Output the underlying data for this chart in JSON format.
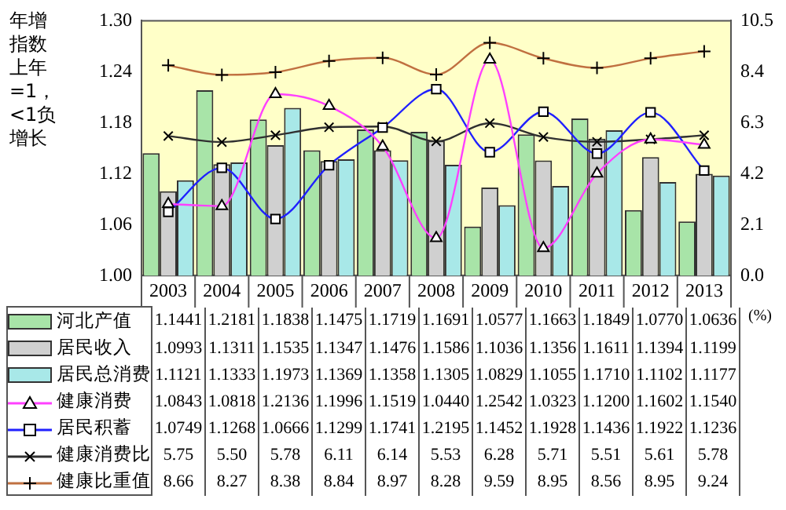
{
  "chart_data": {
    "type": "bar",
    "ylabel": "年增指数上年=1，<1负增长",
    "y2label": "(%)",
    "categories": [
      "2003",
      "2004",
      "2005",
      "2006",
      "2007",
      "2008",
      "2009",
      "2010",
      "2011",
      "2012",
      "2013"
    ],
    "ylim": [
      1.0,
      1.3
    ],
    "yticks": [
      {
        "value": 1.0,
        "label": "1.00"
      },
      {
        "value": 1.06,
        "label": "1.06"
      },
      {
        "value": 1.12,
        "label": "1.12"
      },
      {
        "value": 1.18,
        "label": "1.18"
      },
      {
        "value": 1.24,
        "label": "1.24"
      },
      {
        "value": 1.3,
        "label": "1.30"
      }
    ],
    "y2lim": [
      0,
      10.5
    ],
    "y2ticks": [
      {
        "value": 0,
        "label": "0.0"
      },
      2.1,
      4.2,
      6.3,
      8.4,
      10.5
    ],
    "grid": false,
    "legend": "bottom",
    "series": [
      {
        "name": "河北产值",
        "color": "#a8e4a8",
        "values": [
          1.1441,
          1.2181,
          1.1838,
          1.1475,
          1.1719,
          1.1691,
          1.0577,
          1.1663,
          1.1849,
          1.077,
          1.0636
        ],
        "value_labels": [
          "1.1441",
          "1.2181",
          "1.1838",
          "1.1475",
          "1.1719",
          "1.1691",
          "1.0577",
          "1.1663",
          "1.1849",
          "1.0770",
          "1.0636"
        ]
      },
      {
        "name": "居民收入",
        "color": "#d0d0d0",
        "values": [
          1.0993,
          1.1311,
          1.1535,
          1.1347,
          1.1476,
          1.1586,
          1.1036,
          1.1356,
          1.1611,
          1.1394,
          1.1199
        ],
        "value_labels": [
          "1.0993",
          "1.1311",
          "1.1535",
          "1.1347",
          "1.1476",
          "1.1586",
          "1.1036",
          "1.1356",
          "1.1611",
          "1.1394",
          "1.1199"
        ]
      },
      {
        "name": "居民总消费",
        "color": "#a8e8e8",
        "values": [
          1.1121,
          1.1333,
          1.1973,
          1.1369,
          1.1358,
          1.1305,
          1.0829,
          1.1055,
          1.171,
          1.1102,
          1.1177
        ],
        "value_labels": [
          "1.1121",
          "1.1333",
          "1.1973",
          "1.1369",
          "1.1358",
          "1.1305",
          "1.0829",
          "1.1055",
          "1.1710",
          "1.1102",
          "1.1177"
        ]
      },
      {
        "name": "健康消费",
        "type": "line",
        "color": "#ff40ff",
        "marker": "triangle",
        "values": [
          1.0843,
          1.0818,
          1.2136,
          1.1996,
          1.1519,
          1.044,
          1.2542,
          1.0323,
          1.12,
          1.1602,
          1.154
        ],
        "value_labels": [
          "1.0843",
          "1.0818",
          "1.2136",
          "1.1996",
          "1.1519",
          "1.0440",
          "1.2542",
          "1.0323",
          "1.1200",
          "1.1602",
          "1.1540"
        ]
      },
      {
        "name": "居民积蓄",
        "type": "line",
        "color": "#2020ff",
        "marker": "square",
        "values": [
          1.0749,
          1.1268,
          1.0666,
          1.1299,
          1.1741,
          1.2195,
          1.1452,
          1.1928,
          1.1436,
          1.1922,
          1.1236
        ],
        "value_labels": [
          "1.0749",
          "1.1268",
          "1.0666",
          "1.1299",
          "1.1741",
          "1.2195",
          "1.1452",
          "1.1928",
          "1.1436",
          "1.1922",
          "1.1236"
        ]
      },
      {
        "name": "健康消费比",
        "type": "line",
        "axis": "y2",
        "color": "#303030",
        "marker": "cross",
        "values": [
          5.75,
          5.5,
          5.78,
          6.11,
          6.14,
          5.53,
          6.28,
          5.71,
          5.51,
          5.61,
          5.78
        ],
        "value_labels": [
          "5.75",
          "5.50",
          "5.78",
          "6.11",
          "6.14",
          "5.53",
          "6.28",
          "5.71",
          "5.51",
          "5.61",
          "5.78"
        ]
      },
      {
        "name": "健康比重值",
        "type": "line",
        "axis": "y2",
        "color": "#c07040",
        "marker": "plus",
        "values": [
          8.66,
          8.27,
          8.38,
          8.84,
          8.97,
          8.28,
          9.59,
          8.95,
          8.56,
          8.95,
          9.24
        ],
        "value_labels": [
          "8.66",
          "8.27",
          "8.38",
          "8.84",
          "8.97",
          "8.28",
          "9.59",
          "8.95",
          "8.56",
          "8.95",
          "9.24"
        ]
      }
    ]
  }
}
